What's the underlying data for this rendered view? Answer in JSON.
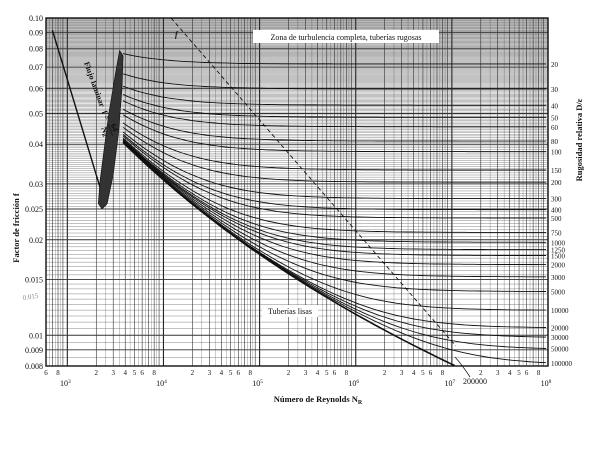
{
  "chart_data": {
    "type": "line",
    "title": "",
    "xlabel": "Número de Reynolds N",
    "xlabel_sub": "R",
    "ylabel": "Factor de fricción f",
    "y2label": "Rugosidad relativa D/ε",
    "xscale": "log",
    "yscale": "log",
    "xlim": [
      600,
      100000000
    ],
    "ylim": [
      0.008,
      0.1
    ],
    "grid": true,
    "y_ticks": [
      "0.10",
      "0.09",
      "0.08",
      "0.07",
      "0.06",
      "0.05",
      "0.04",
      "0.03",
      "0.025",
      "0.02",
      "0.015",
      "0.01",
      "0.009",
      "0.008"
    ],
    "y_tick_values": [
      0.1,
      0.09,
      0.08,
      0.07,
      0.06,
      0.05,
      0.04,
      0.03,
      0.025,
      0.02,
      0.015,
      0.01,
      0.009,
      0.008
    ],
    "x_decades": [
      {
        "base": "10",
        "exp": "3"
      },
      {
        "base": "10",
        "exp": "4"
      },
      {
        "base": "10",
        "exp": "5"
      },
      {
        "base": "10",
        "exp": "6"
      },
      {
        "base": "10",
        "exp": "7"
      },
      {
        "base": "10",
        "exp": "8"
      }
    ],
    "x_minor_labels": [
      "2",
      "3",
      "4",
      "5",
      "6",
      "8"
    ],
    "x_left_minor_labels": [
      "6",
      "8"
    ],
    "roughness_labels": [
      "20",
      "30",
      "40",
      "50",
      "60",
      "80",
      "100",
      "150",
      "200",
      "300",
      "400",
      "500",
      "750",
      "1000",
      "1250",
      "1500",
      "2000",
      "3000",
      "5000",
      "10000",
      "20000",
      "30000",
      "50000",
      "100000"
    ],
    "roughness_values": [
      20,
      30,
      40,
      50,
      60,
      80,
      100,
      150,
      200,
      300,
      400,
      500,
      750,
      1000,
      1250,
      1500,
      2000,
      3000,
      5000,
      10000,
      20000,
      30000,
      50000,
      100000
    ],
    "series": [
      {
        "name": "Flujo laminar",
        "laminar_numerator": "64",
        "laminar_denominator": "N",
        "laminar_sub": "R"
      },
      {
        "name": "Tuberías lisas"
      }
    ],
    "annotations": {
      "turbulence_zone": "Zona de turbulencia completa, tuberías rugosas",
      "smooth_pipes": "Tuberías lisas",
      "laminar_flow": "Flujo laminar",
      "laminar_f_eq": "f =",
      "reynolds_marker": "200000",
      "dashed_line_label": "f",
      "handwritten": "0.015"
    }
  }
}
